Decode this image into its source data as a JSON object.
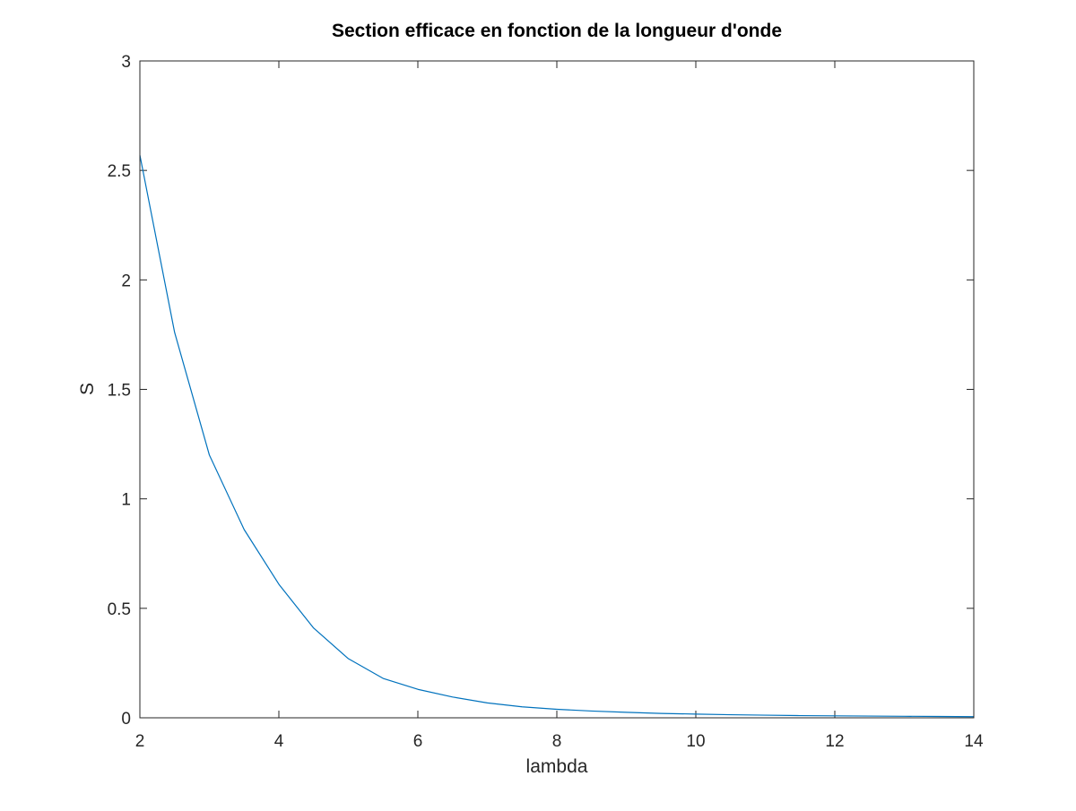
{
  "chart_data": {
    "type": "line",
    "title": "Section efficace en fonction de la longueur d'onde",
    "xlabel": "lambda",
    "ylabel": "S",
    "xlim": [
      2,
      14
    ],
    "ylim": [
      0,
      3
    ],
    "xticks": [
      2,
      4,
      6,
      8,
      10,
      12,
      14
    ],
    "xtick_labels": [
      "2",
      "4",
      "6",
      "8",
      "10",
      "12",
      "14"
    ],
    "yticks": [
      0,
      0.5,
      1,
      1.5,
      2,
      2.5,
      3
    ],
    "ytick_labels": [
      "0",
      "0.5",
      "1",
      "1.5",
      "2",
      "2.5",
      "3"
    ],
    "grid": false,
    "legend": "none",
    "series": [
      {
        "color": "#0072bd",
        "x": [
          2,
          2.5,
          3,
          3.5,
          4,
          4.5,
          5,
          5.5,
          6,
          6.5,
          7,
          7.5,
          8,
          8.5,
          9,
          9.5,
          10,
          10.5,
          11,
          11.5,
          12,
          12.5,
          13,
          13.5,
          14
        ],
        "y": [
          2.57,
          1.76,
          1.2,
          0.86,
          0.61,
          0.41,
          0.27,
          0.18,
          0.13,
          0.095,
          0.068,
          0.05,
          0.039,
          0.031,
          0.025,
          0.02,
          0.017,
          0.014,
          0.012,
          0.01,
          0.009,
          0.008,
          0.007,
          0.006,
          0.005
        ]
      }
    ]
  }
}
